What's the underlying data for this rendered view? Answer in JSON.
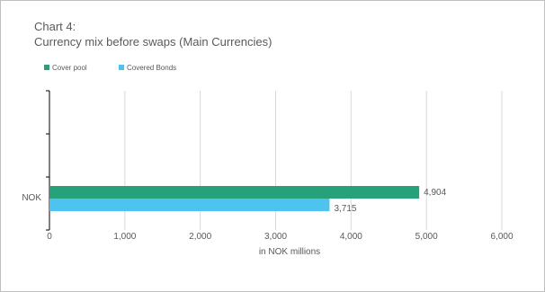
{
  "colors": {
    "cover_pool": "#26a17a",
    "covered_bonds": "#4fc3f0",
    "grid": "#d9d9d9",
    "axis": "#000000"
  },
  "chart_data": {
    "type": "bar",
    "orientation": "horizontal",
    "title_line1": "Chart 4:",
    "title_line2": "Currency mix before swaps (Main Currencies)",
    "xlabel": "in NOK millions",
    "ylabel": "",
    "categories": [
      "NOK"
    ],
    "series": [
      {
        "name": "Cover pool",
        "values": [
          4904
        ],
        "labels": [
          "4,904"
        ],
        "color": "#26a17a"
      },
      {
        "name": "Covered Bonds",
        "values": [
          3715
        ],
        "labels": [
          "3,715"
        ],
        "color": "#4fc3f0"
      }
    ],
    "xlim": [
      0,
      6000
    ],
    "xticks": [
      0,
      1000,
      2000,
      3000,
      4000,
      5000,
      6000
    ],
    "xtick_labels": [
      "0",
      "1,000",
      "2,000",
      "3,000",
      "4,000",
      "5,000",
      "6,000"
    ],
    "grid": true,
    "legend_position": "top-left"
  }
}
